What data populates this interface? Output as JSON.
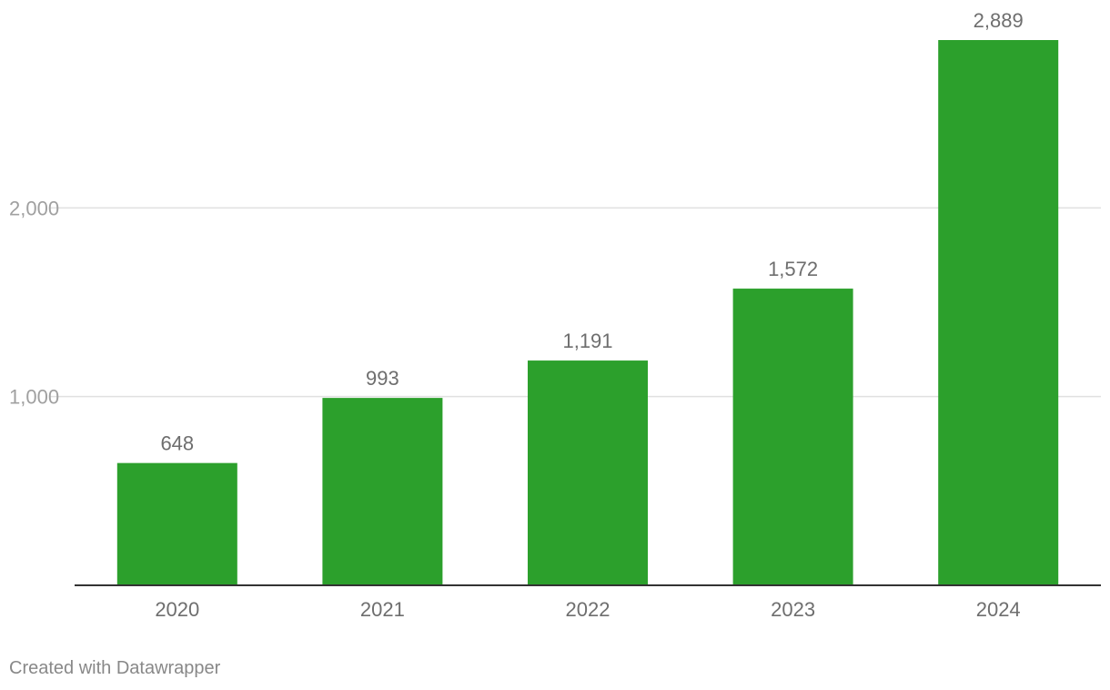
{
  "chart_data": {
    "type": "bar",
    "categories": [
      "2020",
      "2021",
      "2022",
      "2023",
      "2024"
    ],
    "values": [
      648,
      993,
      1191,
      1572,
      2889
    ],
    "value_labels": [
      "648",
      "993",
      "1,191",
      "1,572",
      "2,889"
    ],
    "y_ticks": [
      1000,
      2000
    ],
    "y_tick_labels": [
      "1,000",
      "2,000"
    ],
    "ylim": [
      0,
      2889
    ],
    "grid": true,
    "legend": "none",
    "title": "",
    "xlabel": "",
    "ylabel": "",
    "bar_color": "#2ca02c"
  },
  "footer": {
    "credit": "Created with Datawrapper"
  }
}
